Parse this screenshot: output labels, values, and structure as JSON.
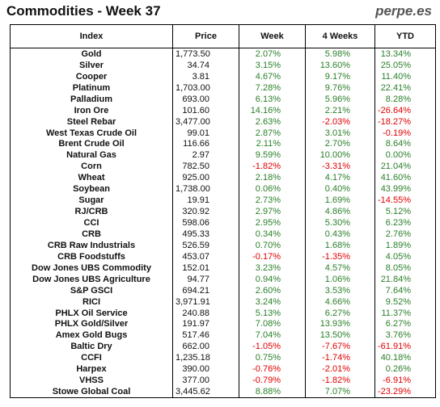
{
  "header": {
    "title": "Commodities - Week 37",
    "brand": "perpe.es"
  },
  "columns": [
    "Index",
    "Price",
    "Week",
    "4 Weeks",
    "YTD"
  ],
  "colors": {
    "positive": "#2a7f2a",
    "negative": "#e00000"
  },
  "rows": [
    [
      "Gold",
      "1,773.50",
      "2.07%",
      "5.98%",
      "13.34%"
    ],
    [
      "Silver",
      "34.74",
      "3.15%",
      "13.60%",
      "25.05%"
    ],
    [
      "Cooper",
      "3.81",
      "4.67%",
      "9.17%",
      "11.40%"
    ],
    [
      "Platinum",
      "1,703.00",
      "7.28%",
      "9.76%",
      "22.41%"
    ],
    [
      "Palladium",
      "693.00",
      "6.13%",
      "5.96%",
      "8.28%"
    ],
    [
      "Iron Ore",
      "101.60",
      "14.16%",
      "2.21%",
      "-26.64%"
    ],
    [
      "Steel Rebar",
      "3,477.00",
      "2.63%",
      "-2.03%",
      "-18.27%"
    ],
    [
      "West Texas Crude Oil",
      "99.01",
      "2.87%",
      "3.01%",
      "-0.19%"
    ],
    [
      "Brent Crude Oil",
      "116.66",
      "2.11%",
      "2.70%",
      "8.64%"
    ],
    [
      "Natural Gas",
      "2.97",
      "9.59%",
      "10.00%",
      "0.00%"
    ],
    [
      "Corn",
      "782.50",
      "-1.82%",
      "-3.31%",
      "21.04%"
    ],
    [
      "Wheat",
      "925.00",
      "2.18%",
      "4.17%",
      "41.60%"
    ],
    [
      "Soybean",
      "1,738.00",
      "0.06%",
      "0.40%",
      "43.99%"
    ],
    [
      "Sugar",
      "19.91",
      "2.73%",
      "1.69%",
      "-14.55%"
    ],
    [
      "RJ/CRB",
      "320.92",
      "2.97%",
      "4.86%",
      "5.12%"
    ],
    [
      "CCI",
      "598.06",
      "2.95%",
      "5.30%",
      "6.23%"
    ],
    [
      "CRB",
      "495.33",
      "0.34%",
      "0.43%",
      "2.76%"
    ],
    [
      "CRB Raw Industrials",
      "526.59",
      "0.70%",
      "1.68%",
      "1.89%"
    ],
    [
      "CRB Foodstuffs",
      "453.07",
      "-0.17%",
      "-1.35%",
      "4.05%"
    ],
    [
      "Dow Jones UBS Commodity",
      "152.01",
      "3.23%",
      "4.57%",
      "8.05%"
    ],
    [
      "Dow Jones UBS Agriculture",
      "94.77",
      "0.94%",
      "1.06%",
      "21.84%"
    ],
    [
      "S&P GSCI",
      "694.21",
      "2.60%",
      "3.53%",
      "7.64%"
    ],
    [
      "RICI",
      "3,971.91",
      "3.24%",
      "4.66%",
      "9.52%"
    ],
    [
      "PHLX Oil Service",
      "240.88",
      "5.13%",
      "6.27%",
      "11.37%"
    ],
    [
      "PHLX Gold/Silver",
      "191.97",
      "7.08%",
      "13.93%",
      "6.27%"
    ],
    [
      "Amex Gold Bugs",
      "517.46",
      "7.04%",
      "13.50%",
      "3.76%"
    ],
    [
      "Baltic Dry",
      "662.00",
      "-1.05%",
      "-7.67%",
      "-61.91%"
    ],
    [
      "CCFI",
      "1,235.18",
      "0.75%",
      "-1.74%",
      "40.18%"
    ],
    [
      "Harpex",
      "390.00",
      "-0.76%",
      "-2.01%",
      "0.26%"
    ],
    [
      "VHSS",
      "377.00",
      "-0.79%",
      "-1.82%",
      "-6.91%"
    ],
    [
      "Stowe Global Coal",
      "3,445.62",
      "8.88%",
      "7.07%",
      "-23.29%"
    ]
  ]
}
